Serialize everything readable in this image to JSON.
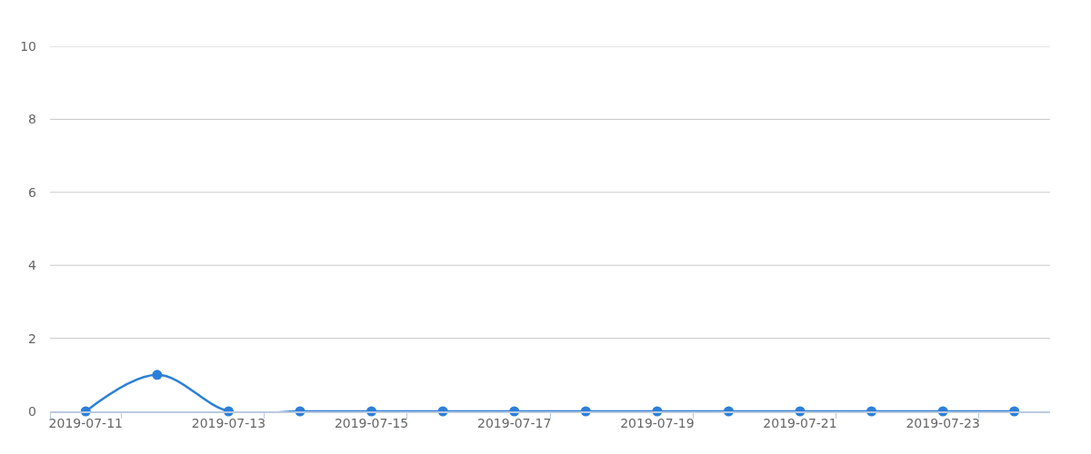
{
  "chart_data": {
    "type": "line",
    "categories": [
      "2019-07-11",
      null,
      "2019-07-13",
      null,
      "2019-07-15",
      null,
      "2019-07-17",
      null,
      "2019-07-19",
      null,
      "2019-07-21",
      null,
      "2019-07-23",
      null
    ],
    "series": [
      {
        "color": "#2c7fd9",
        "values": [
          0,
          1,
          0,
          0,
          0,
          0,
          0,
          0,
          0,
          0,
          0,
          0,
          0,
          0
        ]
      }
    ],
    "ylim": [
      0,
      10
    ],
    "yticks": [
      0,
      2,
      4,
      6,
      8,
      10
    ],
    "grid": "y",
    "marker": "circle",
    "line_style": "solid"
  }
}
